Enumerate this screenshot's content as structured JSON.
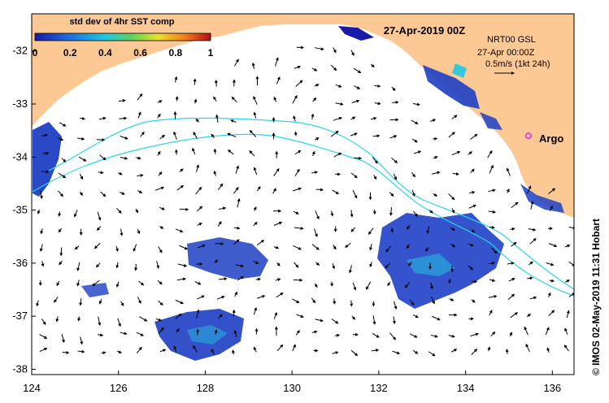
{
  "map": {
    "date_title": "27-Apr-2019 00Z",
    "colorbar": {
      "title": "std dev of 4hr SST comp",
      "ticks": [
        "0",
        "0.2",
        "0.4",
        "0.6",
        "0.8",
        "1"
      ],
      "range": [
        0,
        1
      ],
      "colors": [
        "#1a1aa8",
        "#1f6fe0",
        "#1ec8e0",
        "#60d060",
        "#e8e030",
        "#f08020",
        "#b01010"
      ]
    },
    "legend": {
      "line1": "NRT00 GSL",
      "line2": "27-Apr 00:00Z",
      "line3": "0.5m/s (1kt 24h)"
    },
    "marker": {
      "label": "Argo",
      "lon": 135.45,
      "lat": -33.6,
      "color": "#e040e0"
    },
    "credit": "© IMOS 02-May-2019 11:31 Hobart",
    "lon_ticks": [
      "124",
      "126",
      "128",
      "130",
      "132",
      "134",
      "136"
    ],
    "lat_ticks": [
      "-32",
      "-33",
      "-34",
      "-35",
      "-36",
      "-37",
      "-38"
    ],
    "lon_range": [
      124,
      136.5
    ],
    "lat_range": [
      -38.1,
      -31.3
    ],
    "land_color": "#fcc894",
    "contour_color": "#28d8e8"
  }
}
